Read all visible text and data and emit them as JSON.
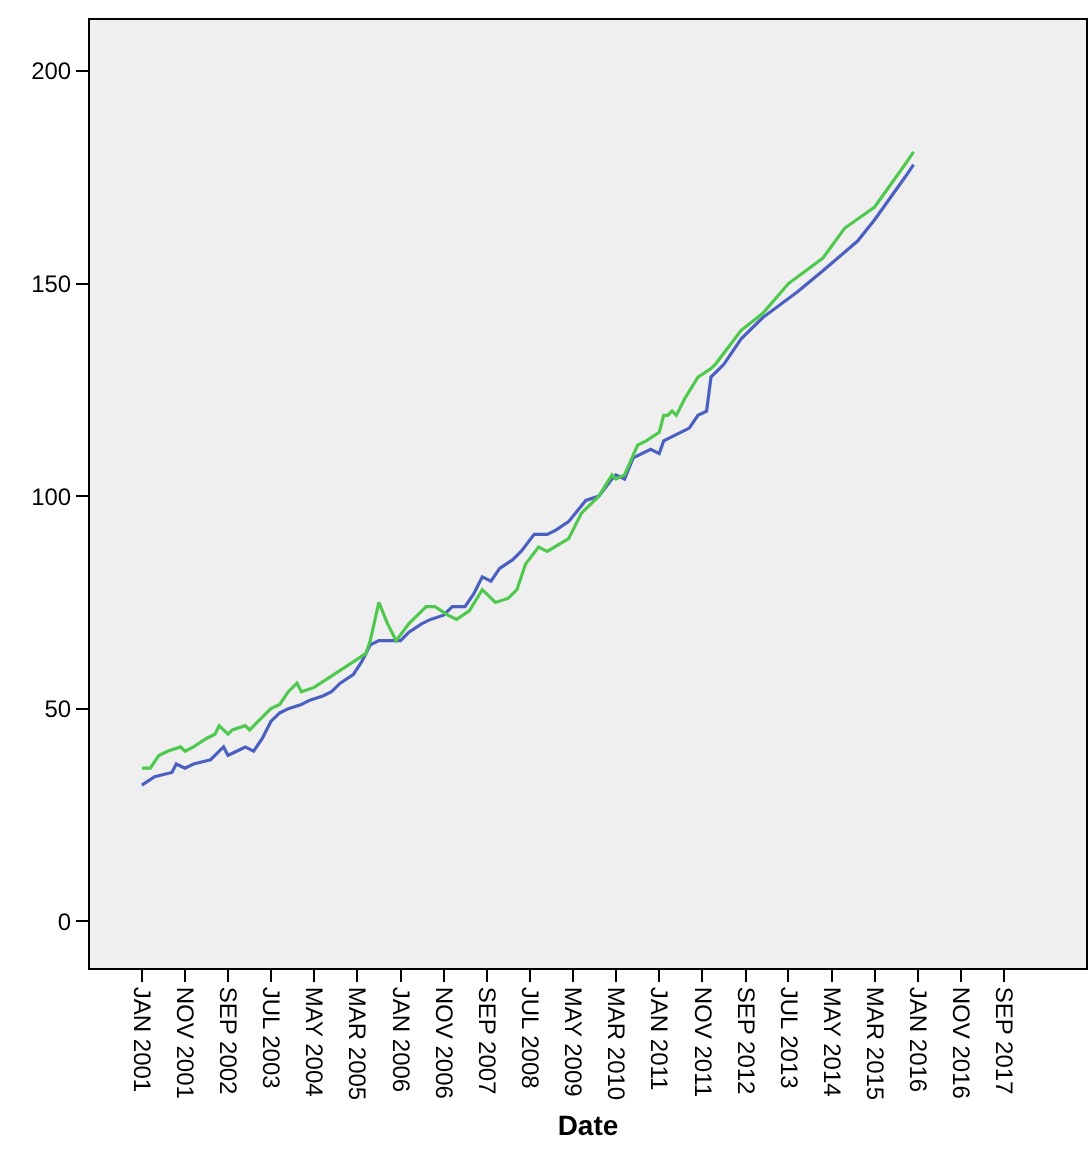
{
  "chart_data": {
    "type": "line",
    "xlabel": "Date",
    "xlim": [
      "2000-01",
      "2019-04"
    ],
    "ylim": [
      -11,
      212
    ],
    "xticks": [
      {
        "value": "2001-01",
        "label": "JAN 2001"
      },
      {
        "value": "2001-11",
        "label": "NOV 2001"
      },
      {
        "value": "2002-09",
        "label": "SEP 2002"
      },
      {
        "value": "2003-07",
        "label": "JUL 2003"
      },
      {
        "value": "2004-05",
        "label": "MAY 2004"
      },
      {
        "value": "2005-03",
        "label": "MAR 2005"
      },
      {
        "value": "2006-01",
        "label": "JAN 2006"
      },
      {
        "value": "2006-11",
        "label": "NOV 2006"
      },
      {
        "value": "2007-09",
        "label": "SEP 2007"
      },
      {
        "value": "2008-07",
        "label": "JUL 2008"
      },
      {
        "value": "2009-05",
        "label": "MAY 2009"
      },
      {
        "value": "2010-03",
        "label": "MAR 2010"
      },
      {
        "value": "2011-01",
        "label": "JAN 2011"
      },
      {
        "value": "2011-11",
        "label": "NOV 2011"
      },
      {
        "value": "2012-09",
        "label": "SEP 2012"
      },
      {
        "value": "2013-07",
        "label": "JUL 2013"
      },
      {
        "value": "2014-05",
        "label": "MAY 2014"
      },
      {
        "value": "2015-03",
        "label": "MAR 2015"
      },
      {
        "value": "2016-01",
        "label": "JAN 2016"
      },
      {
        "value": "2016-11",
        "label": "NOV 2016"
      },
      {
        "value": "2017-09",
        "label": "SEP 2017"
      }
    ],
    "yticks": [
      0,
      50,
      100,
      150,
      200
    ],
    "grid": false,
    "marker": "none",
    "line_style": "solid",
    "series": [
      {
        "color": "#4a5fc1",
        "x": [
          "2001-01",
          "2001-04",
          "2001-08",
          "2001-09",
          "2001-11",
          "2002-01",
          "2002-05",
          "2002-07",
          "2002-08",
          "2002-09",
          "2002-11",
          "2003-01",
          "2003-03",
          "2003-05",
          "2003-07",
          "2003-09",
          "2003-11",
          "2004-02",
          "2004-04",
          "2004-07",
          "2004-09",
          "2004-11",
          "2005-02",
          "2005-04",
          "2005-06",
          "2005-08",
          "2005-11",
          "2006-01",
          "2006-03",
          "2006-06",
          "2006-08",
          "2006-11",
          "2007-01",
          "2007-04",
          "2007-06",
          "2007-08",
          "2007-10",
          "2007-12",
          "2008-03",
          "2008-05",
          "2008-08",
          "2008-11",
          "2009-01",
          "2009-04",
          "2009-08",
          "2009-11",
          "2010-02",
          "2010-03",
          "2010-05",
          "2010-07",
          "2010-11",
          "2011-01",
          "2011-02",
          "2011-06",
          "2011-08",
          "2011-10",
          "2011-12",
          "2012-01",
          "2012-04",
          "2012-08",
          "2013-01",
          "2013-09",
          "2014-03",
          "2014-11",
          "2015-03",
          "2015-10",
          "2015-12"
        ],
        "values": [
          32,
          34,
          35,
          37,
          36,
          37,
          38,
          40,
          41,
          39,
          40,
          41,
          40,
          43,
          47,
          49,
          50,
          51,
          52,
          53,
          54,
          56,
          58,
          61,
          65,
          66,
          66,
          66,
          68,
          70,
          71,
          72,
          74,
          74,
          77,
          81,
          80,
          83,
          85,
          87,
          91,
          91,
          92,
          94,
          99,
          100,
          104,
          105,
          104,
          109,
          111,
          110,
          113,
          115,
          116,
          119,
          120,
          128,
          131,
          137,
          142,
          148,
          153,
          160,
          165,
          175,
          178
        ]
      },
      {
        "color": "#4ec94e",
        "x": [
          "2001-01",
          "2001-03",
          "2001-05",
          "2001-07",
          "2001-10",
          "2001-11",
          "2002-01",
          "2002-04",
          "2002-06",
          "2002-07",
          "2002-09",
          "2002-10",
          "2003-01",
          "2003-02",
          "2003-04",
          "2003-07",
          "2003-09",
          "2003-11",
          "2004-01",
          "2004-02",
          "2004-05",
          "2004-08",
          "2004-11",
          "2005-02",
          "2005-05",
          "2005-06",
          "2005-08",
          "2005-10",
          "2005-12",
          "2006-03",
          "2006-05",
          "2006-07",
          "2006-09",
          "2006-12",
          "2007-02",
          "2007-05",
          "2007-08",
          "2007-09",
          "2007-11",
          "2008-02",
          "2008-04",
          "2008-06",
          "2008-09",
          "2008-11",
          "2009-04",
          "2009-07",
          "2009-11",
          "2010-02",
          "2010-03",
          "2010-05",
          "2010-08",
          "2010-10",
          "2011-01",
          "2011-02",
          "2011-03",
          "2011-04",
          "2011-05",
          "2011-07",
          "2011-10",
          "2012-01",
          "2012-02",
          "2012-08",
          "2013-01",
          "2013-07",
          "2014-03",
          "2014-08",
          "2015-03",
          "2015-10",
          "2015-12"
        ],
        "values": [
          36,
          36,
          39,
          40,
          41,
          40,
          41,
          43,
          44,
          46,
          44,
          45,
          46,
          45,
          47,
          50,
          51,
          54,
          56,
          54,
          55,
          57,
          59,
          61,
          63,
          66,
          75,
          70,
          66,
          70,
          72,
          74,
          74,
          72,
          71,
          73,
          78,
          77,
          75,
          76,
          78,
          84,
          88,
          87,
          90,
          96,
          100,
          105,
          104,
          105,
          112,
          113,
          115,
          119,
          119,
          120,
          119,
          123,
          128,
          130,
          131,
          139,
          143,
          150,
          156,
          163,
          168,
          178,
          181
        ]
      }
    ]
  }
}
